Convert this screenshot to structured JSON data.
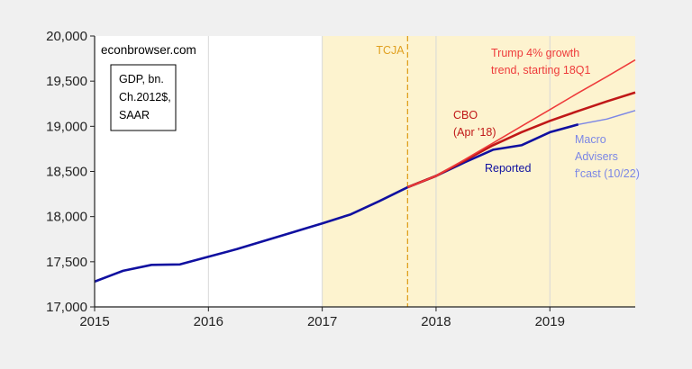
{
  "chart_data": {
    "type": "line",
    "title": "",
    "xlabel": "",
    "ylabel": "",
    "xlim": [
      2015.0,
      2019.75
    ],
    "ylim": [
      17000,
      20000
    ],
    "x_ticks": [
      {
        "value": 2015,
        "label": "2015"
      },
      {
        "value": 2016,
        "label": "2016"
      },
      {
        "value": 2017,
        "label": "2017"
      },
      {
        "value": 2018,
        "label": "2018"
      },
      {
        "value": 2019,
        "label": "2019"
      }
    ],
    "y_ticks": [
      {
        "value": 17000,
        "label": "17,000"
      },
      {
        "value": 17500,
        "label": "17,500"
      },
      {
        "value": 18000,
        "label": "18,000"
      },
      {
        "value": 18500,
        "label": "18,500"
      },
      {
        "value": 19000,
        "label": "19,000"
      },
      {
        "value": 19500,
        "label": "19,500"
      },
      {
        "value": 20000,
        "label": "20,000"
      }
    ],
    "grid": "vertical at year ticks",
    "shaded_region": {
      "x_start": 2017.0,
      "x_end": 2019.75,
      "color": "#fdf3cf"
    },
    "tcja_line": {
      "x": 2017.75,
      "label": "TCJA",
      "color": "#e0a020"
    },
    "watermark": "econbrowser.com",
    "units_box": [
      "GDP, bn.",
      "Ch.2012$,",
      "SAAR"
    ],
    "series": [
      {
        "name": "Reported",
        "color": "#1010a0",
        "label_lines": [
          "Reported"
        ],
        "x": [
          2015.0,
          2015.25,
          2015.5,
          2015.75,
          2016.0,
          2016.25,
          2016.5,
          2016.75,
          2017.0,
          2017.25,
          2017.5,
          2017.75,
          2018.0,
          2018.25,
          2018.5,
          2018.75,
          2019.0,
          2019.25
        ],
        "values": [
          17280,
          17400,
          17465,
          17470,
          17555,
          17640,
          17735,
          17830,
          17925,
          18025,
          18170,
          18325,
          18450,
          18600,
          18740,
          18790,
          18935,
          19020
        ]
      },
      {
        "name": "Macro Advisers f'cast (10/22)",
        "color": "#7b86e6",
        "label_lines": [
          "Macro",
          "Advisers",
          "f'cast (10/22)"
        ],
        "x": [
          2019.25,
          2019.5,
          2019.75
        ],
        "values": [
          19020,
          19080,
          19175
        ]
      },
      {
        "name": "CBO (Apr '18)",
        "color": "#c01818",
        "label_lines": [
          "CBO",
          "(Apr '18)"
        ],
        "x": [
          2017.75,
          2018.0,
          2018.25,
          2018.5,
          2018.75,
          2019.0,
          2019.25,
          2019.5,
          2019.75
        ],
        "values": [
          18325,
          18450,
          18620,
          18790,
          18935,
          19060,
          19170,
          19275,
          19375
        ]
      },
      {
        "name": "Trump 4% growth trend, starting 18Q1",
        "color": "#ee3b3b",
        "label_lines": [
          "Trump 4% growth",
          "trend, starting 18Q1"
        ],
        "x": [
          2017.75,
          2018.0,
          2018.25,
          2018.5,
          2018.75,
          2019.0,
          2019.25,
          2019.5,
          2019.75
        ],
        "values": [
          18325,
          18450,
          18630,
          18815,
          19000,
          19185,
          19370,
          19550,
          19735
        ]
      }
    ]
  }
}
